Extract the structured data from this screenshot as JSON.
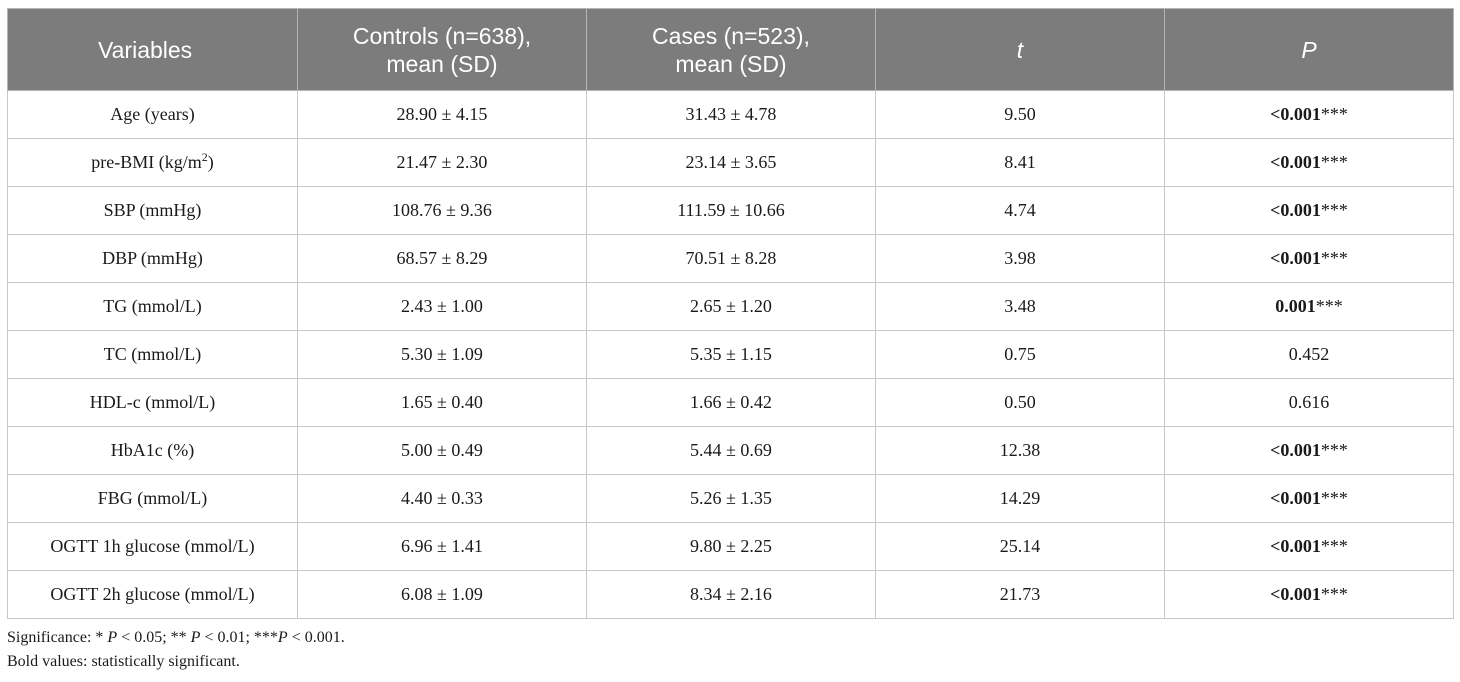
{
  "table": {
    "headers": [
      {
        "line1": "Variables",
        "line2": ""
      },
      {
        "line1": "Controls (n=638),",
        "line2": "mean (SD)"
      },
      {
        "line1": "Cases (n=523),",
        "line2": "mean (SD)"
      },
      {
        "line1": "t",
        "line2": ""
      },
      {
        "line1": "P",
        "line2": ""
      }
    ],
    "rows": [
      {
        "variable": "Age (years)",
        "sup": "",
        "controls": "28.90 ± 4.15",
        "cases": "31.43 ± 4.78",
        "t": "9.50",
        "p": "<0.001",
        "stars": "***",
        "bold": true
      },
      {
        "variable": "pre-BMI (kg/m",
        "sup": "2",
        "variable_suffix": ")",
        "controls": "21.47 ± 2.30",
        "cases": "23.14 ± 3.65",
        "t": "8.41",
        "p": "<0.001",
        "stars": "***",
        "bold": true
      },
      {
        "variable": "SBP (mmHg)",
        "sup": "",
        "controls": "108.76 ± 9.36",
        "cases": "111.59 ± 10.66",
        "t": "4.74",
        "p": "<0.001",
        "stars": "***",
        "bold": true
      },
      {
        "variable": "DBP (mmHg)",
        "sup": "",
        "controls": "68.57 ± 8.29",
        "cases": "70.51 ± 8.28",
        "t": "3.98",
        "p": "<0.001",
        "stars": "***",
        "bold": true
      },
      {
        "variable": "TG (mmol/L)",
        "sup": "",
        "controls": "2.43 ± 1.00",
        "cases": "2.65 ± 1.20",
        "t": "3.48",
        "p": "0.001",
        "stars": "***",
        "bold": true
      },
      {
        "variable": "TC (mmol/L)",
        "sup": "",
        "controls": "5.30 ± 1.09",
        "cases": "5.35 ± 1.15",
        "t": "0.75",
        "p": "0.452",
        "stars": "",
        "bold": false
      },
      {
        "variable": "HDL-c (mmol/L)",
        "sup": "",
        "controls": "1.65 ± 0.40",
        "cases": "1.66 ± 0.42",
        "t": "0.50",
        "p": "0.616",
        "stars": "",
        "bold": false
      },
      {
        "variable": "HbA1c (%)",
        "sup": "",
        "controls": "5.00 ± 0.49",
        "cases": "5.44 ± 0.69",
        "t": "12.38",
        "p": "<0.001",
        "stars": "***",
        "bold": true
      },
      {
        "variable": "FBG (mmol/L)",
        "sup": "",
        "controls": "4.40 ± 0.33",
        "cases": "5.26 ± 1.35",
        "t": "14.29",
        "p": "<0.001",
        "stars": "***",
        "bold": true
      },
      {
        "variable": "OGTT 1h glucose (mmol/L)",
        "sup": "",
        "controls": "6.96 ± 1.41",
        "cases": "9.80 ± 2.25",
        "t": "25.14",
        "p": "<0.001",
        "stars": "***",
        "bold": true
      },
      {
        "variable": "OGTT 2h glucose (mmol/L)",
        "sup": "",
        "controls": "6.08 ± 1.09",
        "cases": "8.34 ± 2.16",
        "t": "21.73",
        "p": "<0.001",
        "stars": "***",
        "bold": true
      }
    ]
  },
  "notes": {
    "significance": {
      "prefix": "Significance: * ",
      "p1": "P",
      "t1": " < 0.05; ** ",
      "p2": "P",
      "t2": " < 0.01; ***",
      "p3": "P",
      "t3": " < 0.001."
    },
    "bold_note": "Bold values: statistically significant."
  },
  "colors": {
    "header_bg": "#7b7c7b",
    "header_text": "#ffffff",
    "grid": "#c8c8c8"
  }
}
